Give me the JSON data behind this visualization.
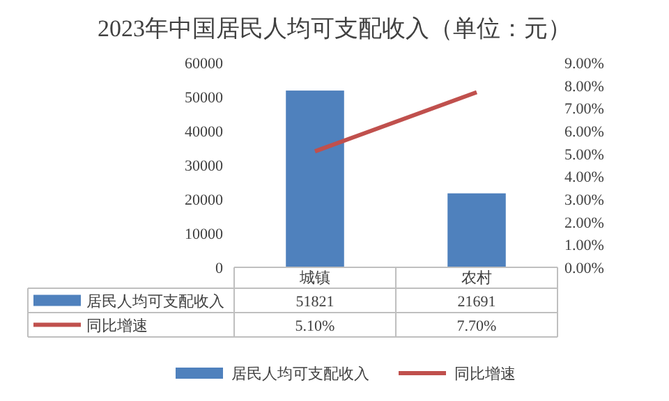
{
  "chart_data": {
    "type": "bar",
    "title": "2023年中国居民人均可支配收入（单位：元）",
    "categories": [
      "城镇",
      "农村"
    ],
    "series": [
      {
        "name": "居民人均可支配收入",
        "color": "#4f81bd",
        "values": [
          51821,
          21691
        ],
        "value_labels": [
          "51821",
          "21691"
        ]
      },
      {
        "name": "同比增速",
        "type": "line",
        "axis": "y2",
        "color": "#c0504d",
        "values": [
          5.1,
          7.7
        ],
        "value_labels": [
          "5.10%",
          "7.70%"
        ]
      }
    ],
    "ylim": [
      0,
      60000
    ],
    "yticks": [
      0,
      10000,
      20000,
      30000,
      40000,
      50000,
      60000
    ],
    "y2lim": [
      0,
      9
    ],
    "y2ticks": [
      {
        "value": 0,
        "label": "0.00%"
      },
      {
        "value": 1,
        "label": "1.00%"
      },
      {
        "value": 2,
        "label": "2.00%"
      },
      {
        "value": 3,
        "label": "3.00%"
      },
      {
        "value": 4,
        "label": "4.00%"
      },
      {
        "value": 5,
        "label": "5.00%"
      },
      {
        "value": 6,
        "label": "6.00%"
      },
      {
        "value": 7,
        "label": "7.00%"
      },
      {
        "value": 8,
        "label": "8.00%"
      },
      {
        "value": 9,
        "label": "9.00%"
      }
    ],
    "legend": "bottom",
    "grid": false,
    "marker": "none"
  }
}
